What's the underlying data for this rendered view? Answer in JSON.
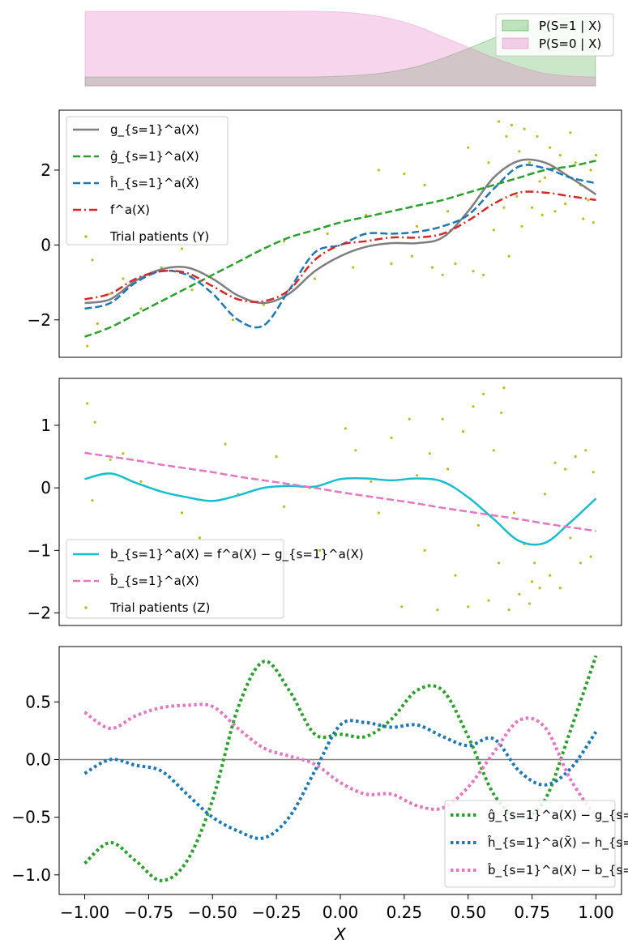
{
  "chart_data": [
    {
      "type": "area",
      "panel": "propensity",
      "x": [
        -1.0,
        -0.9,
        -0.8,
        -0.7,
        -0.6,
        -0.5,
        -0.4,
        -0.3,
        -0.2,
        -0.1,
        0.0,
        0.1,
        0.2,
        0.3,
        0.4,
        0.5,
        0.6,
        0.7,
        0.8,
        0.9,
        1.0
      ],
      "series": [
        {
          "name": "P(S=1 | X)",
          "color": "#2ca02c",
          "alpha": 0.25,
          "values": [
            0.12,
            0.12,
            0.12,
            0.12,
            0.12,
            0.12,
            0.12,
            0.12,
            0.12,
            0.12,
            0.13,
            0.15,
            0.19,
            0.26,
            0.37,
            0.5,
            0.64,
            0.77,
            0.87,
            0.92,
            0.93
          ]
        },
        {
          "name": "P(S=0 | X)",
          "color": "#e377c2",
          "alpha": 0.3,
          "values": [
            1.0,
            1.0,
            1.0,
            1.0,
            1.0,
            1.0,
            1.0,
            1.0,
            1.0,
            1.0,
            0.99,
            0.96,
            0.9,
            0.8,
            0.66,
            0.52,
            0.38,
            0.26,
            0.17,
            0.13,
            0.12
          ]
        }
      ],
      "xlim": [
        -1.0,
        1.0
      ],
      "ylim": [
        0.0,
        1.0
      ],
      "legend": "top-right"
    },
    {
      "type": "line",
      "panel": "outcomes",
      "xlim": [
        -1.0,
        1.0
      ],
      "ylim": [
        -3.0,
        3.6
      ],
      "yticks": [
        -2,
        0,
        2
      ],
      "ytick_labels": [
        "−2",
        "0",
        "2"
      ],
      "legend": "top-left",
      "x": [
        -1.0,
        -0.9,
        -0.8,
        -0.7,
        -0.6,
        -0.5,
        -0.4,
        -0.3,
        -0.2,
        -0.1,
        0.0,
        0.1,
        0.2,
        0.3,
        0.4,
        0.5,
        0.6,
        0.7,
        0.8,
        0.9,
        1.0
      ],
      "series": [
        {
          "name": "g_{s=1}^a(X)",
          "color": "#7f7f7f",
          "style": "solid",
          "values": [
            -1.55,
            -1.45,
            -0.95,
            -0.65,
            -0.6,
            -0.9,
            -1.35,
            -1.55,
            -1.3,
            -0.7,
            -0.3,
            -0.05,
            0.05,
            0.05,
            0.2,
            0.9,
            1.8,
            2.25,
            2.2,
            1.8,
            1.35
          ]
        },
        {
          "name": "ĝ_{s=1}^a(X)",
          "color": "#2ca02c",
          "style": "dashed",
          "values": [
            -2.45,
            -2.2,
            -1.85,
            -1.5,
            -1.15,
            -0.8,
            -0.45,
            -0.1,
            0.2,
            0.4,
            0.6,
            0.75,
            0.9,
            1.05,
            1.2,
            1.4,
            1.6,
            1.8,
            2.0,
            2.1,
            2.25
          ]
        },
        {
          "name": "ĥ_{s=1}^a(X̃)",
          "color": "#1f77b4",
          "style": "dashed",
          "values": [
            -1.7,
            -1.55,
            -1.0,
            -0.7,
            -0.8,
            -1.3,
            -2.0,
            -2.15,
            -1.2,
            -0.2,
            0.0,
            0.3,
            0.3,
            0.35,
            0.5,
            0.8,
            1.5,
            2.1,
            2.05,
            1.8,
            1.65
          ]
        },
        {
          "name": "f^a(X)",
          "color": "#d62728",
          "style": "dashdot",
          "values": [
            -1.45,
            -1.3,
            -0.9,
            -0.7,
            -0.75,
            -1.1,
            -1.45,
            -1.5,
            -1.2,
            -0.4,
            0.0,
            0.1,
            0.2,
            0.2,
            0.3,
            0.65,
            1.1,
            1.4,
            1.4,
            1.3,
            1.2
          ]
        }
      ],
      "scatter": {
        "name": "Trial patients (Y)",
        "color": "#bcbd22",
        "x": [
          -0.99,
          -0.97,
          -0.95,
          -0.9,
          -0.85,
          -0.78,
          -0.7,
          -0.62,
          -0.58,
          -0.55,
          -0.42,
          -0.3,
          -0.22,
          -0.1,
          -0.05,
          0.05,
          0.1,
          0.15,
          0.2,
          0.25,
          0.28,
          0.3,
          0.33,
          0.36,
          0.4,
          0.42,
          0.45,
          0.5,
          0.52,
          0.55,
          0.56,
          0.58,
          0.6,
          0.62,
          0.64,
          0.65,
          0.67,
          0.69,
          0.7,
          0.72,
          0.74,
          0.75,
          0.77,
          0.79,
          0.8,
          0.82,
          0.84,
          0.86,
          0.88,
          0.9,
          0.92,
          0.94,
          0.95,
          0.97,
          0.98,
          0.99,
          1.0,
          0.66,
          0.71,
          0.78
        ],
        "y": [
          -2.7,
          -0.4,
          -2.1,
          -1.3,
          -0.9,
          -1.7,
          -0.6,
          -0.1,
          -1.2,
          0.1,
          -2.0,
          -1.6,
          0.1,
          -0.9,
          0.3,
          -0.6,
          0.8,
          2.0,
          -0.5,
          1.9,
          -0.3,
          0.5,
          1.6,
          -0.6,
          -0.8,
          0.9,
          -0.5,
          2.6,
          -0.7,
          1.5,
          -0.8,
          2.2,
          0.4,
          3.3,
          1.0,
          2.9,
          3.2,
          1.3,
          2.5,
          3.1,
          2.2,
          1.0,
          2.9,
          0.8,
          1.8,
          2.6,
          0.9,
          2.4,
          1.1,
          3.0,
          2.2,
          1.6,
          0.7,
          1.2,
          2.0,
          0.6,
          2.4,
          -0.3,
          0.5,
          1.7
        ]
      }
    },
    {
      "type": "line",
      "panel": "bias",
      "xlim": [
        -1.0,
        1.0
      ],
      "ylim": [
        -2.2,
        1.75
      ],
      "yticks": [
        -2,
        -1,
        0,
        1
      ],
      "ytick_labels": [
        "−2",
        "−1",
        "0",
        "1"
      ],
      "legend": "bottom-left",
      "x": [
        -1.0,
        -0.9,
        -0.8,
        -0.7,
        -0.6,
        -0.5,
        -0.4,
        -0.3,
        -0.2,
        -0.1,
        0.0,
        0.1,
        0.2,
        0.3,
        0.4,
        0.5,
        0.6,
        0.7,
        0.8,
        0.9,
        1.0
      ],
      "series": [
        {
          "name": "b_{s=1}^a(X) = f^a(X) − g_{s=1}^a(X)",
          "color": "#17becf",
          "style": "solid",
          "values": [
            0.14,
            0.23,
            0.08,
            -0.06,
            -0.15,
            -0.21,
            -0.12,
            0.0,
            0.03,
            0.02,
            0.14,
            0.15,
            0.12,
            0.15,
            0.1,
            -0.15,
            -0.5,
            -0.85,
            -0.88,
            -0.55,
            -0.17
          ]
        },
        {
          "name": "b̂_{s=1}^a(X)",
          "color": "#e377c2",
          "style": "dashed",
          "values": [
            0.56,
            0.5,
            0.44,
            0.37,
            0.31,
            0.25,
            0.18,
            0.12,
            0.06,
            0.0,
            -0.07,
            -0.13,
            -0.19,
            -0.25,
            -0.32,
            -0.38,
            -0.44,
            -0.5,
            -0.57,
            -0.63,
            -0.69
          ]
        }
      ],
      "scatter": {
        "name": "Trial patients (Z)",
        "color": "#bcbd22",
        "x": [
          -0.99,
          -0.97,
          -0.96,
          -0.9,
          -0.85,
          -0.78,
          -0.62,
          -0.55,
          -0.45,
          -0.4,
          -0.25,
          -0.22,
          -0.12,
          -0.08,
          0.02,
          0.06,
          0.12,
          0.15,
          0.2,
          0.24,
          0.27,
          0.3,
          0.33,
          0.35,
          0.38,
          0.4,
          0.42,
          0.45,
          0.48,
          0.5,
          0.52,
          0.54,
          0.56,
          0.58,
          0.6,
          0.62,
          0.64,
          0.66,
          0.68,
          0.7,
          0.72,
          0.74,
          0.76,
          0.78,
          0.8,
          0.82,
          0.84,
          0.86,
          0.88,
          0.9,
          0.92,
          0.94,
          0.96,
          0.98,
          0.99,
          0.63,
          0.69,
          0.75
        ],
        "y": [
          1.35,
          -0.2,
          1.05,
          0.45,
          0.55,
          0.1,
          -0.4,
          -0.8,
          0.7,
          -0.1,
          0.5,
          -0.3,
          0.0,
          -1.0,
          0.95,
          0.6,
          0.1,
          -0.4,
          0.8,
          -1.9,
          1.1,
          0.2,
          -1.0,
          0.55,
          -1.95,
          1.1,
          0.3,
          -1.4,
          0.9,
          -1.9,
          1.3,
          -0.6,
          1.5,
          -1.8,
          0.6,
          -1.2,
          1.6,
          -1.95,
          -0.4,
          -1.7,
          -0.9,
          -1.85,
          -1.2,
          -1.6,
          -0.1,
          -1.4,
          0.4,
          -1.6,
          0.3,
          -0.8,
          0.5,
          -1.2,
          0.6,
          -1.1,
          0.25,
          1.2,
          -0.5,
          -1.5
        ]
      }
    },
    {
      "type": "line",
      "panel": "errors",
      "xlabel": "X",
      "xlim": [
        -1.1,
        1.1
      ],
      "ylim": [
        -1.17,
        0.98
      ],
      "xticks": [
        -1.0,
        -0.75,
        -0.5,
        -0.25,
        0.0,
        0.25,
        0.5,
        0.75,
        1.0
      ],
      "xtick_labels": [
        "−1.00",
        "−0.75",
        "−0.50",
        "−0.25",
        "0.00",
        "0.25",
        "0.50",
        "0.75",
        "1.00"
      ],
      "yticks": [
        -1.0,
        -0.5,
        0.0,
        0.5
      ],
      "ytick_labels": [
        "−1.0",
        "−0.5",
        "0.0",
        "0.5"
      ],
      "hline": 0.0,
      "legend": "bottom-right",
      "x": [
        -1.0,
        -0.9,
        -0.8,
        -0.7,
        -0.6,
        -0.5,
        -0.4,
        -0.3,
        -0.2,
        -0.1,
        0.0,
        0.1,
        0.2,
        0.3,
        0.4,
        0.5,
        0.6,
        0.7,
        0.8,
        0.9,
        1.0
      ],
      "series": [
        {
          "name": "ĝ_{s=1}^a(X) − g_{s=1}^a(X)",
          "color": "#2ca02c",
          "style": "dotted",
          "values": [
            -0.9,
            -0.72,
            -0.88,
            -1.05,
            -0.88,
            -0.35,
            0.45,
            0.85,
            0.6,
            0.22,
            0.22,
            0.2,
            0.35,
            0.6,
            0.6,
            0.2,
            -0.3,
            -0.5,
            -0.35,
            0.25,
            0.9
          ]
        },
        {
          "name": "ĥ_{s=1}^a(X̃) − h_{s=1}^a(X̃)",
          "color": "#1f77b4",
          "style": "dotted",
          "values": [
            -0.12,
            0.0,
            -0.05,
            -0.1,
            -0.3,
            -0.5,
            -0.62,
            -0.68,
            -0.5,
            -0.1,
            0.3,
            0.32,
            0.28,
            0.3,
            0.2,
            0.12,
            0.18,
            -0.1,
            -0.22,
            -0.08,
            0.24
          ]
        },
        {
          "name": "b̂_{s=1}^a(X) − b_{s=1}^a(X)",
          "color": "#e377c2",
          "style": "dotted",
          "values": [
            0.41,
            0.27,
            0.38,
            0.45,
            0.47,
            0.46,
            0.27,
            0.1,
            0.03,
            -0.04,
            -0.2,
            -0.3,
            -0.3,
            -0.4,
            -0.42,
            -0.24,
            0.06,
            0.34,
            0.28,
            -0.17,
            -0.5
          ]
        }
      ]
    }
  ]
}
